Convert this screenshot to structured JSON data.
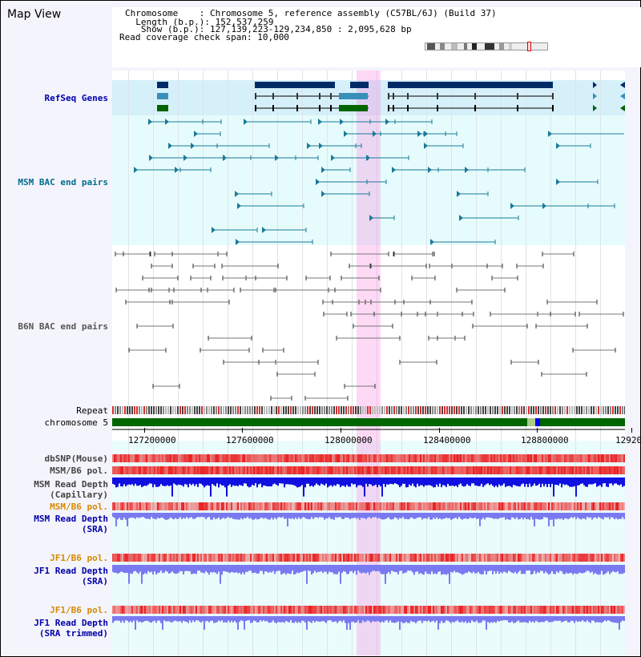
{
  "header": {
    "title": "Map View",
    "info": [
      {
        "label": "Chromosome    ",
        "value": ": Chromosome 5, reference assembly (C57BL/6J) (Build 37)"
      },
      {
        "label": "  Length (b.p.)",
        "value": ": 152,537,259"
      },
      {
        "label": "   Show (b.p.)",
        "value": ": 127,139,223-129,234,850 : 2,095,628 bp"
      },
      {
        "label": "Read coverage check span",
        "value": ": 10,000"
      }
    ]
  },
  "tracks": {
    "refseq": {
      "label": "RefSeq Genes",
      "color": "#0000aa"
    },
    "msm_bac": {
      "label": "MSM BAC end pairs",
      "color": "#006d8f"
    },
    "b6n_bac": {
      "label": "B6N BAC end pairs",
      "color": "#555555"
    },
    "repeat": {
      "label": "Repeat"
    },
    "chromosome": {
      "label": "chromosome 5"
    },
    "dbsnp": {
      "label": "dbSNP(Mouse)"
    },
    "msm_b6_pol": {
      "label": "MSM/B6 pol."
    },
    "msm_read_depth_cap": {
      "label": "MSM Read Depth",
      "sub": "(Capillary)"
    },
    "msm_b6_pol2": {
      "label": "MSM/B6 pol.",
      "color": "#d68a00"
    },
    "msm_read_depth_sra": {
      "label": "MSM Read Depth",
      "sub": "(SRA)",
      "color": "#0000aa"
    },
    "jf1_b6_pol": {
      "label": "JF1/B6 pol.",
      "color": "#d68a00"
    },
    "jf1_read_depth_sra": {
      "label": "JF1 Read Depth",
      "sub": "(SRA)",
      "color": "#0000aa"
    },
    "jf1_b6_pol2": {
      "label": "JF1/B6 pol.",
      "color": "#d68a00"
    },
    "jf1_read_depth_trim": {
      "label": "JF1 Read Depth",
      "sub": "(SRA trimmed)",
      "color": "#0000aa"
    }
  },
  "axis": {
    "ticks": [
      "127200000",
      "127600000",
      "128000000",
      "128400000",
      "128800000",
      "12920"
    ]
  },
  "colors": {
    "refseq_dark": "#002b66",
    "refseq_mid": "#3a8fb8",
    "refseq_green": "#006400",
    "msm_feature": "#1a7a9a",
    "b6n_feature": "#777777",
    "chromosome_green": "#006600",
    "snp_red": "#e84848",
    "depth_blue": "#1010e0",
    "depth_light": "#7a7af0",
    "highlight": "#f7b8ec"
  }
}
